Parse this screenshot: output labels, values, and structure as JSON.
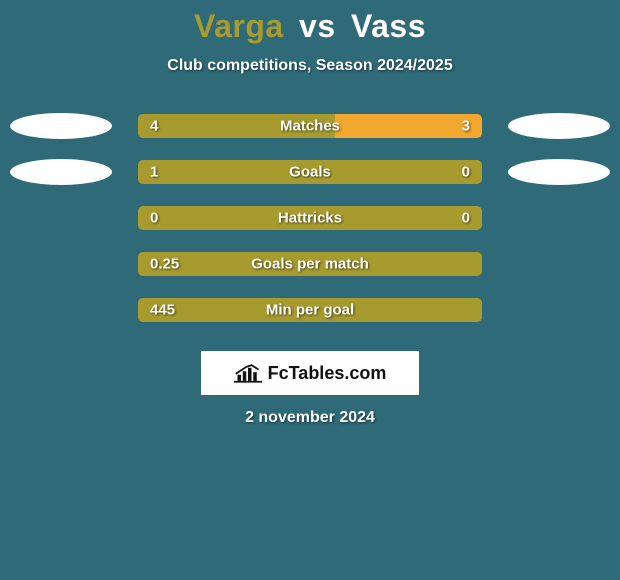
{
  "background_color": "#2f6a78",
  "title": {
    "left_name": "Varga",
    "separator": "vs",
    "right_name": "Vass",
    "left_color": "#a79b2f",
    "right_color": "#ffffff",
    "separator_color": "#ffffff",
    "fontsize": 32
  },
  "subtitle": {
    "text": "Club competitions, Season 2024/2025",
    "fontsize": 16
  },
  "brand": {
    "label": "FcTables.com",
    "fontsize": 18
  },
  "date": {
    "text": "2 november 2024",
    "fontsize": 16
  },
  "bar_style": {
    "left_fill": "#a79b2f",
    "right_fill": "#f2a72e",
    "track_fill": "#a79b2f",
    "border_radius": 5,
    "value_text_shadow": "1px 1px 2px rgba(0,0,0,0.6)",
    "ellipse_color": "#ffffff"
  },
  "rows": [
    {
      "label": "Matches",
      "left_value": "4",
      "right_value": "3",
      "left_num": 4,
      "right_num": 3,
      "show_ellipses": true
    },
    {
      "label": "Goals",
      "left_value": "1",
      "right_value": "0",
      "left_num": 1,
      "right_num": 0,
      "show_ellipses": true
    },
    {
      "label": "Hattricks",
      "left_value": "0",
      "right_value": "0",
      "left_num": 0,
      "right_num": 0,
      "show_ellipses": false
    },
    {
      "label": "Goals per match",
      "left_value": "0.25",
      "right_value": "",
      "left_num": 0.25,
      "right_num": 0,
      "show_ellipses": false
    },
    {
      "label": "Min per goal",
      "left_value": "445",
      "right_value": "",
      "left_num": 445,
      "right_num": 0,
      "show_ellipses": false
    }
  ]
}
